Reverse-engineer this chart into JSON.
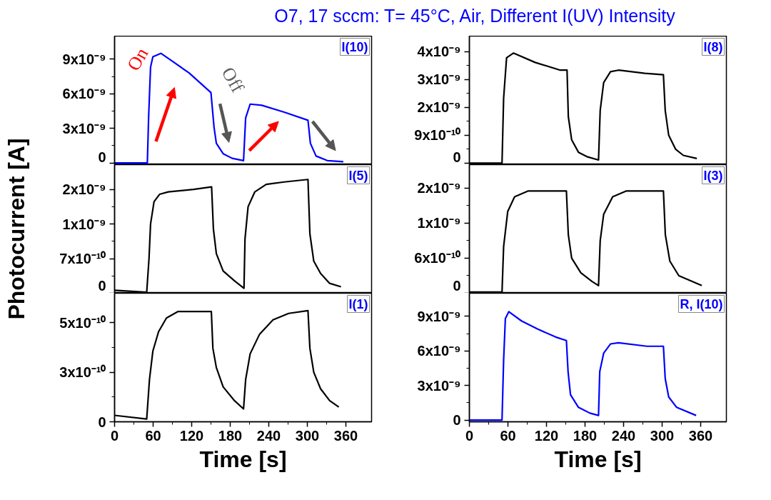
{
  "chart_data": [
    {
      "type": "line",
      "title": "O7, 17 sccm: T= 45°C, Air, Different I(UV) Intensity",
      "annotations": [
        "I(10)",
        "On",
        "Off"
      ],
      "xlim": [
        0,
        400
      ],
      "xticks": [
        0,
        60,
        120,
        180,
        240,
        300,
        360
      ],
      "ylim": [
        -1.5e-10,
        1.1e-08
      ],
      "yticks": [
        {
          "value": 0,
          "label": "0"
        },
        {
          "value": 3e-09,
          "label": "3x10⁻⁹"
        },
        {
          "value": 6e-09,
          "label": "6x10⁻⁹"
        },
        {
          "value": 9e-09,
          "label": "9x10⁻⁹"
        }
      ],
      "tick_labels": "y",
      "series": [
        {
          "color": "#0000ff",
          "x": [
            0,
            51,
            53,
            56,
            59.6,
            72,
            87.8,
            116,
            150,
            154.8,
            158.4,
            169,
            183,
            200.7,
            204,
            211,
            229,
            264,
            301,
            304.8,
            313.5,
            331,
            356
          ],
          "values": [
            0,
            0,
            4e-09,
            8.3e-09,
            9.2e-09,
            9.5e-09,
            8.9e-09,
            7.8e-09,
            6.1e-09,
            3.1e-09,
            1.7e-09,
            8e-10,
            4e-10,
            2e-10,
            3.9e-09,
            5.1e-09,
            5e-09,
            4.4e-09,
            3.7e-09,
            1.7e-09,
            6e-10,
            2e-10,
            1e-10
          ]
        }
      ]
    },
    {
      "type": "line",
      "annotations": [
        "I(8)"
      ],
      "xlim": [
        0,
        400
      ],
      "xticks": [
        0,
        60,
        120,
        180,
        240,
        300,
        360
      ],
      "ylim": [
        -5e-11,
        4.1e-09
      ],
      "yticks": [
        {
          "value": 0,
          "label": "0"
        },
        {
          "value": 9e-10,
          "label": "9x10⁻¹⁰"
        },
        {
          "value": 1.8e-09,
          "label": "2x10⁻⁹"
        },
        {
          "value": 2.7e-09,
          "label": "3x10⁻⁹"
        },
        {
          "value": 3.6e-09,
          "label": "4x10⁻⁹"
        }
      ],
      "tick_labels": "y",
      "series": [
        {
          "color": "#000000",
          "x": [
            0,
            50.8,
            53.3,
            57.9,
            68.5,
            102.3,
            141.4,
            152,
            154,
            159.2,
            169.8,
            184,
            201,
            203.6,
            209,
            219.6,
            232,
            273,
            302,
            304.8,
            310.2,
            320.9,
            333,
            354
          ],
          "values": [
            0,
            0,
            2.1e-09,
            3.4e-09,
            3.55e-09,
            3.25e-09,
            3e-09,
            3e-09,
            1.5e-09,
            7.5e-10,
            3.5e-10,
            2e-10,
            1e-10,
            1.7e-09,
            2.6e-09,
            2.95e-09,
            3e-09,
            2.9e-09,
            2.85e-09,
            1.7e-09,
            9e-10,
            4.5e-10,
            2.5e-10,
            1.5e-10
          ]
        }
      ]
    },
    {
      "type": "line",
      "ylabel": "Photocurrent [A]",
      "annotations": [
        "I(5)"
      ],
      "xlim": [
        0,
        400
      ],
      "xticks": [
        0,
        60,
        120,
        180,
        240,
        300,
        360
      ],
      "ylim": [
        0,
        2.6e-09
      ],
      "yticks": [
        {
          "value": 0,
          "label": "0"
        },
        {
          "value": 7e-10,
          "label": "7x10⁻¹⁰"
        },
        {
          "value": 1.4e-09,
          "label": "1x10⁻⁹"
        },
        {
          "value": 2.1e-09,
          "label": "2x10⁻⁹"
        }
      ],
      "tick_labels": "y",
      "series": [
        {
          "color": "#000000",
          "x": [
            0,
            50,
            53.6,
            56,
            61.4,
            70,
            83.6,
            123,
            151,
            153.8,
            158.4,
            169,
            186.6,
            201.4,
            203,
            207.8,
            218.3,
            236,
            264,
            301,
            304,
            310,
            320.6,
            334.7,
            352.4
          ],
          "values": [
            6e-11,
            2e-11,
            7e-10,
            1.4e-09,
            1.85e-09,
            2e-09,
            2.05e-09,
            2.1e-09,
            2.15e-09,
            1.3e-09,
            8e-10,
            4.5e-10,
            2.5e-10,
            1e-10,
            1.1e-09,
            1.75e-09,
            2.05e-09,
            2.2e-09,
            2.25e-09,
            2.3e-09,
            1.2e-09,
            6.5e-10,
            4e-10,
            2e-10,
            1.3e-10
          ]
        }
      ]
    },
    {
      "type": "line",
      "annotations": [
        "I(3)"
      ],
      "xlim": [
        0,
        400
      ],
      "xticks": [
        0,
        60,
        120,
        180,
        240,
        300,
        360
      ],
      "ylim": [
        0,
        2.2e-09
      ],
      "yticks": [
        {
          "value": 0,
          "label": "0"
        },
        {
          "value": 6e-10,
          "label": "6x10⁻¹⁰"
        },
        {
          "value": 1.2e-09,
          "label": "1x10⁻⁹"
        },
        {
          "value": 1.8e-09,
          "label": "2x10⁻⁹"
        }
      ],
      "tick_labels": "y",
      "series": [
        {
          "color": "#000000",
          "x": [
            0,
            50.8,
            53.3,
            59.7,
            70.4,
            91.7,
            151,
            154,
            159.2,
            173.4,
            191,
            201,
            203.6,
            209,
            223,
            244.5,
            302,
            305,
            312,
            326,
            361.7
          ],
          "values": [
            2e-11,
            2e-11,
            8e-10,
            1.4e-09,
            1.65e-09,
            1.75e-09,
            1.75e-09,
            1e-09,
            6e-10,
            3.5e-10,
            2e-10,
            1.3e-10,
            9e-10,
            1.35e-09,
            1.65e-09,
            1.75e-09,
            1.75e-09,
            1e-09,
            5.5e-10,
            3e-10,
            1.3e-10
          ]
        }
      ]
    },
    {
      "type": "line",
      "xlabel": "Time [s]",
      "annotations": [
        "I(1)"
      ],
      "xlim": [
        0,
        400
      ],
      "xticks": [
        0,
        60,
        120,
        180,
        240,
        300,
        360
      ],
      "ylim": [
        0,
        7e-10
      ],
      "yticks": [
        {
          "value": 0,
          "label": "0"
        },
        {
          "value": 2.7e-10,
          "label": "3x10⁻¹⁰"
        },
        {
          "value": 5.4e-10,
          "label": "5x10⁻¹⁰"
        }
      ],
      "series": [
        {
          "color": "#000000",
          "x": [
            0,
            50,
            54.3,
            59.6,
            68.4,
            80.7,
            98.4,
            150.6,
            153,
            158.4,
            169,
            186.6,
            200.7,
            204,
            211,
            225.4,
            246.6,
            271,
            301,
            304,
            310,
            320.6,
            334.7,
            349
          ],
          "values": [
            3.5e-11,
            1.5e-11,
            2.3e-10,
            3.85e-10,
            4.9e-10,
            5.65e-10,
            6e-10,
            6e-10,
            4e-10,
            2.95e-10,
            1.9e-10,
            1.15e-10,
            7e-11,
            2.3e-10,
            3.7e-10,
            4.75e-10,
            5.55e-10,
            5.9e-10,
            6.05e-10,
            4e-10,
            2.7e-10,
            1.8e-10,
            1.15e-10,
            8e-11
          ]
        }
      ]
    },
    {
      "type": "line",
      "xlabel": "Time [s]",
      "annotations": [
        "R, I(10)"
      ],
      "xlim": [
        0,
        400
      ],
      "xticks": [
        0,
        60,
        120,
        180,
        240,
        300,
        360
      ],
      "ylim": [
        -1.5e-10,
        1.1e-08
      ],
      "yticks": [
        {
          "value": 0,
          "label": "0"
        },
        {
          "value": 3e-09,
          "label": "3x10⁻⁹"
        },
        {
          "value": 6e-09,
          "label": "6x10⁻⁹"
        },
        {
          "value": 9e-09,
          "label": "9x10⁻⁹"
        }
      ],
      "series": [
        {
          "color": "#0000ff",
          "x": [
            0,
            50.8,
            53.3,
            56,
            61.4,
            81,
            105.9,
            134.3,
            151,
            153.6,
            157.4,
            169.8,
            187.6,
            201,
            202.9,
            209,
            219.6,
            232,
            276.4,
            302,
            304.8,
            310.2,
            322.6,
            352.9
          ],
          "values": [
            0,
            0,
            5.2e-09,
            8.8e-09,
            9.4e-09,
            8.6e-09,
            7.9e-09,
            7.2e-09,
            6.9e-09,
            4.2e-09,
            2.2e-09,
            1.1e-09,
            6e-10,
            4e-10,
            4.2e-09,
            5.8e-09,
            6.6e-09,
            6.7e-09,
            6.4e-09,
            6.4e-09,
            3.6e-09,
            2e-09,
            1.1e-09,
            4e-10
          ]
        }
      ]
    }
  ]
}
